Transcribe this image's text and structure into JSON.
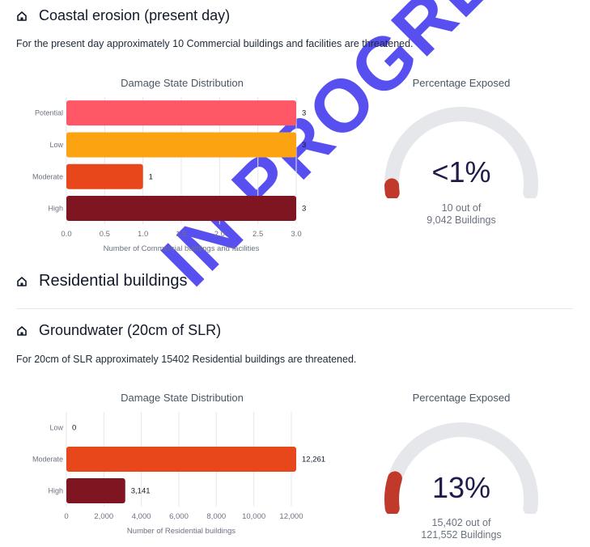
{
  "sections": {
    "coastal": {
      "title": "Coastal erosion (present day)",
      "description": "For the present day approximately 10 Commercial buildings and facilities are threatened.",
      "chart_title": "Damage State Distribution",
      "gauge_title": "Percentage Exposed",
      "gauge_value": "<1%",
      "gauge_sub_1": "10 out of",
      "gauge_sub_2": "9,042 Buildings",
      "gauge_fraction": 0.0011
    },
    "residential_heading": "Residential buildings",
    "groundwater": {
      "title": "Groundwater (20cm of SLR)",
      "description": "For 20cm of SLR approximately 15402 Residential buildings are threatened.",
      "chart_title": "Damage State Distribution",
      "gauge_title": "Percentage Exposed",
      "gauge_value": "13%",
      "gauge_sub_1": "15,402 out of",
      "gauge_sub_2": "121,552 Buildings",
      "gauge_fraction": 0.127
    }
  },
  "watermark": "IN PROGRESS",
  "colors": {
    "potential": "#fe5766",
    "low": "#fca311",
    "moderate": "#e8461b",
    "high": "#7f1521",
    "gauge_track": "#e5e7eb",
    "gauge_fill": "#c0392b",
    "watermark": "#4a3cf0"
  },
  "chart_data": [
    {
      "type": "bar",
      "orientation": "horizontal",
      "title": "Damage State Distribution",
      "xlabel": "Number of Commercial buildings and facilities",
      "ylabel": "",
      "categories": [
        "Potential",
        "Low",
        "Moderate",
        "High"
      ],
      "values": [
        3,
        3,
        1,
        3
      ],
      "value_labels": [
        "3",
        "3",
        "1",
        "3"
      ],
      "xlim": [
        0,
        3.0
      ],
      "xticks": [
        "0.0",
        "0.5",
        "1.0",
        "1.5",
        "2.0",
        "2.5",
        "3.0"
      ],
      "bar_colors": [
        "#fe5766",
        "#fca311",
        "#e8461b",
        "#7f1521"
      ],
      "grid": true
    },
    {
      "type": "bar",
      "orientation": "horizontal",
      "title": "Damage State Distribution",
      "xlabel": "Number of Residential buildings",
      "ylabel": "",
      "categories": [
        "Low",
        "Moderate",
        "High"
      ],
      "values": [
        0,
        12261,
        3141
      ],
      "value_labels": [
        "0",
        "12,261",
        "3,141"
      ],
      "xlim": [
        0,
        12261
      ],
      "xticks": [
        "0",
        "2,000",
        "4,000",
        "6,000",
        "8,000",
        "10,000",
        "12,000"
      ],
      "xtick_values": [
        0,
        2000,
        4000,
        6000,
        8000,
        10000,
        12000
      ],
      "bar_colors": [
        "#fca311",
        "#e8461b",
        "#7f1521"
      ],
      "grid": true
    }
  ]
}
